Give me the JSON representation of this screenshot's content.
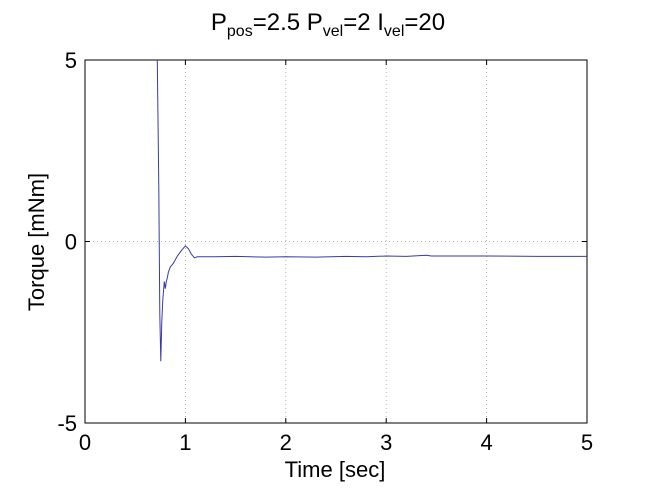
{
  "chart_data": {
    "type": "line",
    "title": {
      "parts": [
        {
          "text": "P",
          "sub": false
        },
        {
          "text": "pos",
          "sub": true
        },
        {
          "text": "=2.5 P",
          "sub": false
        },
        {
          "text": "vel",
          "sub": true
        },
        {
          "text": "=2 I",
          "sub": false
        },
        {
          "text": "vel",
          "sub": true
        },
        {
          "text": "=20",
          "sub": false
        }
      ]
    },
    "xlabel": "Time [sec]",
    "ylabel": "Torque [mNm]",
    "xlim": [
      0,
      5
    ],
    "ylim": [
      -5,
      5
    ],
    "xticks": [
      0,
      1,
      2,
      3,
      4,
      5
    ],
    "yticks": [
      -5,
      0,
      5
    ],
    "grid": true,
    "grid_style": "dotted",
    "colors": {
      "line": "#3a3aa8",
      "axes": "#000000",
      "grid": "#b0b0b0"
    },
    "series": [
      {
        "x": [
          0.72,
          0.735,
          0.745,
          0.755,
          0.765,
          0.775,
          0.79,
          0.8,
          0.81,
          0.82,
          0.83,
          0.85,
          0.88,
          0.92,
          0.96,
          1.0,
          1.03,
          1.06,
          1.09,
          1.12,
          1.2,
          1.3,
          1.5,
          1.8,
          2.0,
          2.3,
          2.6,
          2.8,
          3.0,
          3.2,
          3.4,
          3.45,
          3.6,
          4.0,
          4.5,
          5.0
        ],
        "y": [
          5.0,
          1.5,
          -2.0,
          -3.3,
          -2.2,
          -1.6,
          -1.1,
          -1.3,
          -1.1,
          -1.0,
          -0.85,
          -0.7,
          -0.6,
          -0.4,
          -0.25,
          -0.12,
          -0.2,
          -0.35,
          -0.45,
          -0.42,
          -0.42,
          -0.42,
          -0.41,
          -0.43,
          -0.42,
          -0.43,
          -0.41,
          -0.42,
          -0.4,
          -0.41,
          -0.38,
          -0.4,
          -0.4,
          -0.4,
          -0.41,
          -0.41
        ]
      }
    ]
  }
}
